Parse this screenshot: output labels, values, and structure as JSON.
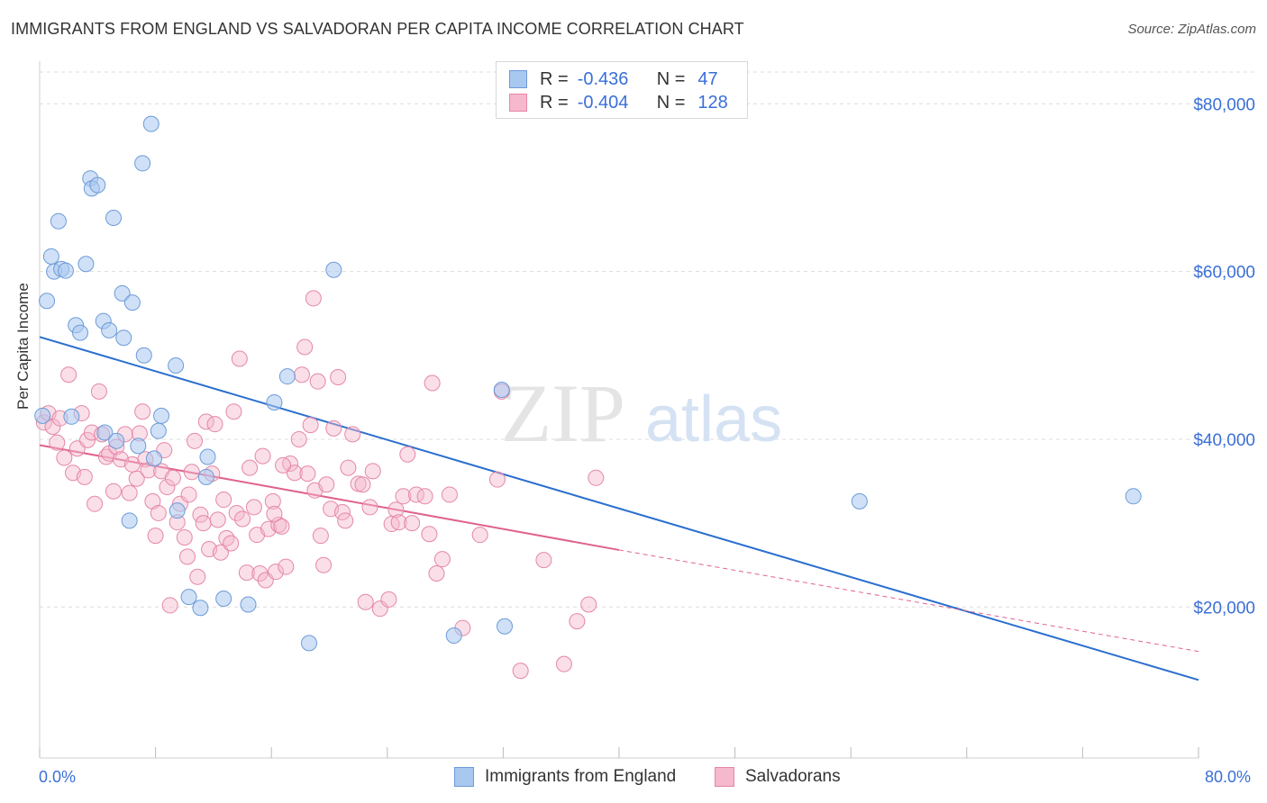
{
  "title": "IMMIGRANTS FROM ENGLAND VS SALVADORAN PER CAPITA INCOME CORRELATION CHART",
  "source": "Source: ZipAtlas.com",
  "watermark": {
    "zip": "ZIP",
    "atlas": "atlas"
  },
  "legend": {
    "r_label": "R =",
    "n_label": "N =",
    "series1": {
      "r": "-0.436",
      "n": "47"
    },
    "series2": {
      "r": "-0.404",
      "n": "128"
    }
  },
  "bottom_legend": {
    "series1": "Immigrants from England",
    "series2": "Salvadorans"
  },
  "colors": {
    "series1_fill": "#a9c8f0",
    "series1_stroke": "#6c9bd8",
    "series1_line": "#2a6fcf",
    "series2_fill": "#f5b8cc",
    "series2_stroke": "#e587a6",
    "series2_line": "#e0628c",
    "axis_text": "#3a6fd8",
    "grid": "#dcdcdc"
  },
  "chart_data": {
    "type": "scatter",
    "title": "IMMIGRANTS FROM ENGLAND VS SALVADORAN PER CAPITA INCOME CORRELATION CHART",
    "xlabel": "",
    "ylabel": "Per Capita Income",
    "xlim": [
      0,
      80
    ],
    "ylim": [
      2000,
      84000
    ],
    "x_tick_labels": [
      "0.0%",
      "80.0%"
    ],
    "y_ticks": [
      20000,
      40000,
      60000,
      80000
    ],
    "y_tick_labels": [
      "$20,000",
      "$40,000",
      "$60,000",
      "$80,000"
    ],
    "grid": true,
    "series": [
      {
        "name": "Immigrants from England",
        "points": [
          [
            0.2,
            42800
          ],
          [
            0.5,
            56500
          ],
          [
            0.8,
            61800
          ],
          [
            1.0,
            60000
          ],
          [
            1.3,
            66000
          ],
          [
            1.5,
            60300
          ],
          [
            1.8,
            60100
          ],
          [
            2.2,
            42700
          ],
          [
            2.5,
            53600
          ],
          [
            2.8,
            52700
          ],
          [
            3.2,
            60900
          ],
          [
            3.5,
            71100
          ],
          [
            3.6,
            69900
          ],
          [
            4.0,
            70300
          ],
          [
            4.4,
            54100
          ],
          [
            4.5,
            40800
          ],
          [
            4.8,
            53000
          ],
          [
            5.1,
            66400
          ],
          [
            5.3,
            39800
          ],
          [
            5.7,
            57400
          ],
          [
            5.8,
            52100
          ],
          [
            6.2,
            30300
          ],
          [
            6.4,
            56300
          ],
          [
            6.8,
            39200
          ],
          [
            7.1,
            72900
          ],
          [
            7.2,
            50000
          ],
          [
            7.7,
            77600
          ],
          [
            7.9,
            37700
          ],
          [
            8.2,
            41000
          ],
          [
            8.4,
            42800
          ],
          [
            9.4,
            48800
          ],
          [
            9.5,
            31500
          ],
          [
            10.3,
            21200
          ],
          [
            11.1,
            19900
          ],
          [
            11.5,
            35500
          ],
          [
            11.6,
            37900
          ],
          [
            12.7,
            21000
          ],
          [
            14.4,
            20300
          ],
          [
            16.2,
            44400
          ],
          [
            17.1,
            47500
          ],
          [
            18.6,
            15700
          ],
          [
            20.3,
            60200
          ],
          [
            28.6,
            16600
          ],
          [
            31.9,
            45900
          ],
          [
            32.1,
            17700
          ],
          [
            56.6,
            32600
          ],
          [
            75.5,
            33200
          ]
        ],
        "trend": {
          "x": [
            0,
            80
          ],
          "y": [
            52200,
            11300
          ]
        }
      },
      {
        "name": "Salvadorans",
        "points": [
          [
            0.3,
            42000
          ],
          [
            0.6,
            43100
          ],
          [
            0.9,
            41500
          ],
          [
            1.2,
            39600
          ],
          [
            1.4,
            42500
          ],
          [
            1.7,
            37800
          ],
          [
            2.0,
            47700
          ],
          [
            2.3,
            36000
          ],
          [
            2.6,
            38900
          ],
          [
            2.9,
            43100
          ],
          [
            3.1,
            35500
          ],
          [
            3.3,
            39900
          ],
          [
            3.6,
            40800
          ],
          [
            3.8,
            32300
          ],
          [
            4.1,
            45700
          ],
          [
            4.3,
            40600
          ],
          [
            4.6,
            37900
          ],
          [
            4.8,
            38300
          ],
          [
            5.1,
            33800
          ],
          [
            5.3,
            39100
          ],
          [
            5.6,
            37600
          ],
          [
            5.9,
            40600
          ],
          [
            6.2,
            33600
          ],
          [
            6.4,
            37000
          ],
          [
            6.7,
            35300
          ],
          [
            6.9,
            40700
          ],
          [
            7.1,
            43300
          ],
          [
            7.3,
            37600
          ],
          [
            7.5,
            36300
          ],
          [
            7.8,
            32600
          ],
          [
            8.0,
            28500
          ],
          [
            8.2,
            31200
          ],
          [
            8.4,
            36200
          ],
          [
            8.6,
            38700
          ],
          [
            8.8,
            34300
          ],
          [
            9.0,
            20200
          ],
          [
            9.2,
            35400
          ],
          [
            9.5,
            30100
          ],
          [
            9.7,
            32300
          ],
          [
            10.0,
            28300
          ],
          [
            10.2,
            26000
          ],
          [
            10.3,
            33400
          ],
          [
            10.5,
            36100
          ],
          [
            10.7,
            39800
          ],
          [
            10.9,
            23600
          ],
          [
            11.1,
            31000
          ],
          [
            11.3,
            30000
          ],
          [
            11.5,
            42100
          ],
          [
            11.7,
            26900
          ],
          [
            11.9,
            35900
          ],
          [
            12.1,
            41800
          ],
          [
            12.3,
            30400
          ],
          [
            12.5,
            26500
          ],
          [
            12.7,
            32800
          ],
          [
            12.9,
            28200
          ],
          [
            13.2,
            27600
          ],
          [
            13.4,
            43300
          ],
          [
            13.6,
            31200
          ],
          [
            13.8,
            49600
          ],
          [
            14.0,
            30500
          ],
          [
            14.3,
            24100
          ],
          [
            14.5,
            36600
          ],
          [
            14.8,
            31900
          ],
          [
            15.0,
            28600
          ],
          [
            15.2,
            24000
          ],
          [
            15.4,
            38000
          ],
          [
            15.6,
            23200
          ],
          [
            15.8,
            29300
          ],
          [
            16.1,
            32600
          ],
          [
            16.3,
            24200
          ],
          [
            16.5,
            29800
          ],
          [
            16.7,
            29600
          ],
          [
            17.0,
            24800
          ],
          [
            17.3,
            37100
          ],
          [
            17.6,
            36000
          ],
          [
            17.9,
            40000
          ],
          [
            18.1,
            47700
          ],
          [
            18.3,
            51000
          ],
          [
            18.5,
            35900
          ],
          [
            18.7,
            41700
          ],
          [
            19.0,
            33900
          ],
          [
            19.2,
            46900
          ],
          [
            19.4,
            28500
          ],
          [
            19.6,
            25000
          ],
          [
            19.8,
            34600
          ],
          [
            20.1,
            31700
          ],
          [
            20.3,
            41300
          ],
          [
            20.6,
            47400
          ],
          [
            20.9,
            31300
          ],
          [
            21.1,
            30300
          ],
          [
            21.3,
            36600
          ],
          [
            21.6,
            40600
          ],
          [
            22.0,
            34700
          ],
          [
            22.3,
            34600
          ],
          [
            22.5,
            20600
          ],
          [
            22.8,
            31900
          ],
          [
            23.0,
            36200
          ],
          [
            23.5,
            19800
          ],
          [
            24.1,
            20900
          ],
          [
            24.3,
            29900
          ],
          [
            24.6,
            31600
          ],
          [
            24.8,
            30100
          ],
          [
            25.1,
            33200
          ],
          [
            25.4,
            38200
          ],
          [
            25.7,
            30000
          ],
          [
            26.0,
            33400
          ],
          [
            26.6,
            33200
          ],
          [
            26.9,
            28700
          ],
          [
            27.1,
            46700
          ],
          [
            27.4,
            24000
          ],
          [
            27.8,
            25700
          ],
          [
            28.3,
            33400
          ],
          [
            29.2,
            17500
          ],
          [
            30.4,
            28600
          ],
          [
            31.6,
            35200
          ],
          [
            31.9,
            45700
          ],
          [
            33.2,
            12400
          ],
          [
            34.8,
            25600
          ],
          [
            36.2,
            13200
          ],
          [
            37.1,
            18300
          ],
          [
            37.9,
            20300
          ],
          [
            38.4,
            35400
          ],
          [
            16.2,
            31100
          ],
          [
            16.8,
            36900
          ],
          [
            18.9,
            56800
          ]
        ],
        "trend": {
          "x": [
            0,
            40
          ],
          "y": [
            39300,
            26800
          ]
        },
        "trend_extension": {
          "x": [
            40,
            80
          ],
          "y": [
            26800,
            14700
          ]
        }
      }
    ]
  }
}
